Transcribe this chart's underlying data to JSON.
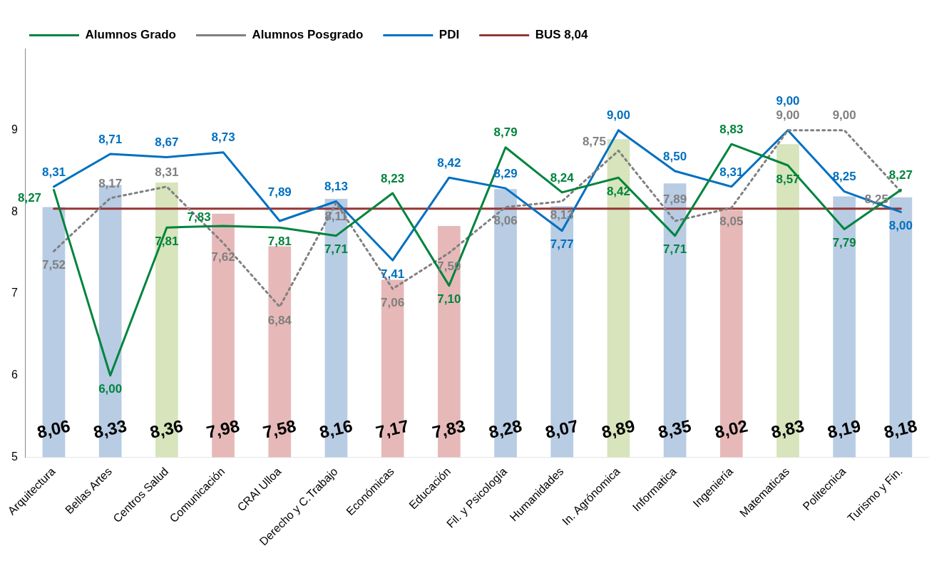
{
  "chart_data": {
    "type": "bar",
    "categories": [
      "Arquitectura",
      "Bellas Artes",
      "Centros Salud",
      "Comunicación",
      "CRAI Ulloa",
      "Derecho y C.Trabajo",
      "Económicas",
      "Educación",
      "Fil. y Psicología",
      "Humanidades",
      "In. Agrónomica",
      "Informatica",
      "Ingeniería",
      "Matematicas",
      "Politecnica",
      "Turismo y Fin."
    ],
    "ylim": [
      5,
      10
    ],
    "yticks": [
      5,
      6,
      7,
      8,
      9
    ],
    "grid": false,
    "legend": "top",
    "marker": "none",
    "series": [
      {
        "colors": [
          "#b8cce4",
          "#b8cce4",
          "#d7e4bc",
          "#e6b9b8",
          "#e6b9b8",
          "#b8cce4",
          "#e6b9b8",
          "#e6b9b8",
          "#b8cce4",
          "#b8cce4",
          "#d7e4bc",
          "#b8cce4",
          "#e6b9b8",
          "#d7e4bc",
          "#b8cce4",
          "#b8cce4"
        ],
        "values": [
          8.06,
          8.33,
          8.36,
          7.98,
          7.58,
          8.16,
          7.17,
          7.83,
          8.28,
          8.07,
          8.89,
          8.35,
          8.02,
          8.83,
          8.19,
          8.18
        ],
        "value_labels": [
          "8,06",
          "8,33",
          "8,36",
          "7,98",
          "7,58",
          "8,16",
          "7,17",
          "7,83",
          "8,28",
          "8,07",
          "8,89",
          "8,35",
          "8,02",
          "8,83",
          "8,19",
          "8,18"
        ]
      },
      {
        "type": "line",
        "name": "Alumnos Grado",
        "color": "#00843d",
        "line_style": "solid",
        "values": [
          8.27,
          6.0,
          7.81,
          7.83,
          7.81,
          7.71,
          8.23,
          7.1,
          8.79,
          8.24,
          8.42,
          7.71,
          8.83,
          8.57,
          7.79,
          8.27
        ],
        "value_labels": [
          "8,27",
          "6,00",
          "7,81",
          "7,83",
          "7,81",
          "7,71",
          "8,23",
          "7,10",
          "8,79",
          "8,24",
          "8,42",
          "7,71",
          "8,83",
          "8,57",
          "7,79",
          "8,27"
        ]
      },
      {
        "type": "line",
        "name": "Alumnos Posgrado",
        "color": "#808080",
        "line_style": "dotted",
        "values": [
          7.52,
          8.17,
          8.31,
          7.62,
          6.84,
          8.11,
          7.06,
          7.5,
          8.06,
          8.13,
          8.75,
          7.89,
          8.05,
          9.0,
          9.0,
          8.25
        ],
        "value_labels": [
          "7,52",
          "8,17",
          "8,31",
          "7,62",
          "6,84",
          "8,11",
          "7,06",
          "7,50",
          "8,06",
          "8,13",
          "8,75",
          "7,89",
          "8,05",
          "9,00",
          "9,00",
          "8,25"
        ]
      },
      {
        "type": "line",
        "name": "PDI",
        "color": "#0070c0",
        "line_style": "solid",
        "values": [
          8.31,
          8.71,
          8.67,
          8.73,
          7.89,
          8.13,
          7.41,
          8.42,
          8.29,
          7.77,
          9.0,
          8.5,
          8.31,
          9.0,
          8.25,
          8.0
        ],
        "value_labels": [
          "8,31",
          "8,71",
          "8,67",
          "8,73",
          "7,89",
          "8,13",
          "7,41",
          "8,42",
          "8,29",
          "7,77",
          "9,00",
          "8,50",
          "8,31",
          "9,00",
          "8,25",
          "8,00"
        ]
      },
      {
        "type": "line",
        "name": "BUS 8,04",
        "color": "#953735",
        "line_style": "solid",
        "values": [
          8.04,
          8.04,
          8.04,
          8.04,
          8.04,
          8.04,
          8.04,
          8.04,
          8.04,
          8.04,
          8.04,
          8.04,
          8.04,
          8.04,
          8.04,
          8.04
        ]
      }
    ]
  }
}
